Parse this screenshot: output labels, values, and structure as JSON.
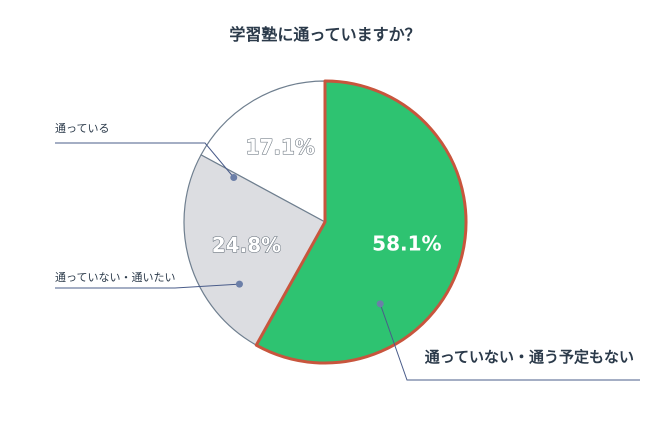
{
  "chart_data": {
    "type": "pie",
    "title": "学習塾に通っていますか？",
    "slices": [
      {
        "label": "通っていない・通う予定もない",
        "value": 58.1,
        "display": "58.1%",
        "color": "#2ec371",
        "stroke": "#c8553d",
        "text_color": "#ffffff"
      },
      {
        "label": "通っていない・通いたい",
        "value": 24.8,
        "display": "24.8%",
        "color": "#dcdde1",
        "stroke": "#6f7f8f",
        "text_color": "#ffffff"
      },
      {
        "label": "通っている",
        "value": 17.1,
        "display": "17.1%",
        "color": "#ffffff",
        "stroke": "#6f7f8f",
        "text_color": "#ffffff"
      }
    ]
  },
  "colors": {
    "title": "#2b3a4a",
    "leader_line": "#4a5c8a",
    "leader_dot": "#6c7fa8"
  }
}
